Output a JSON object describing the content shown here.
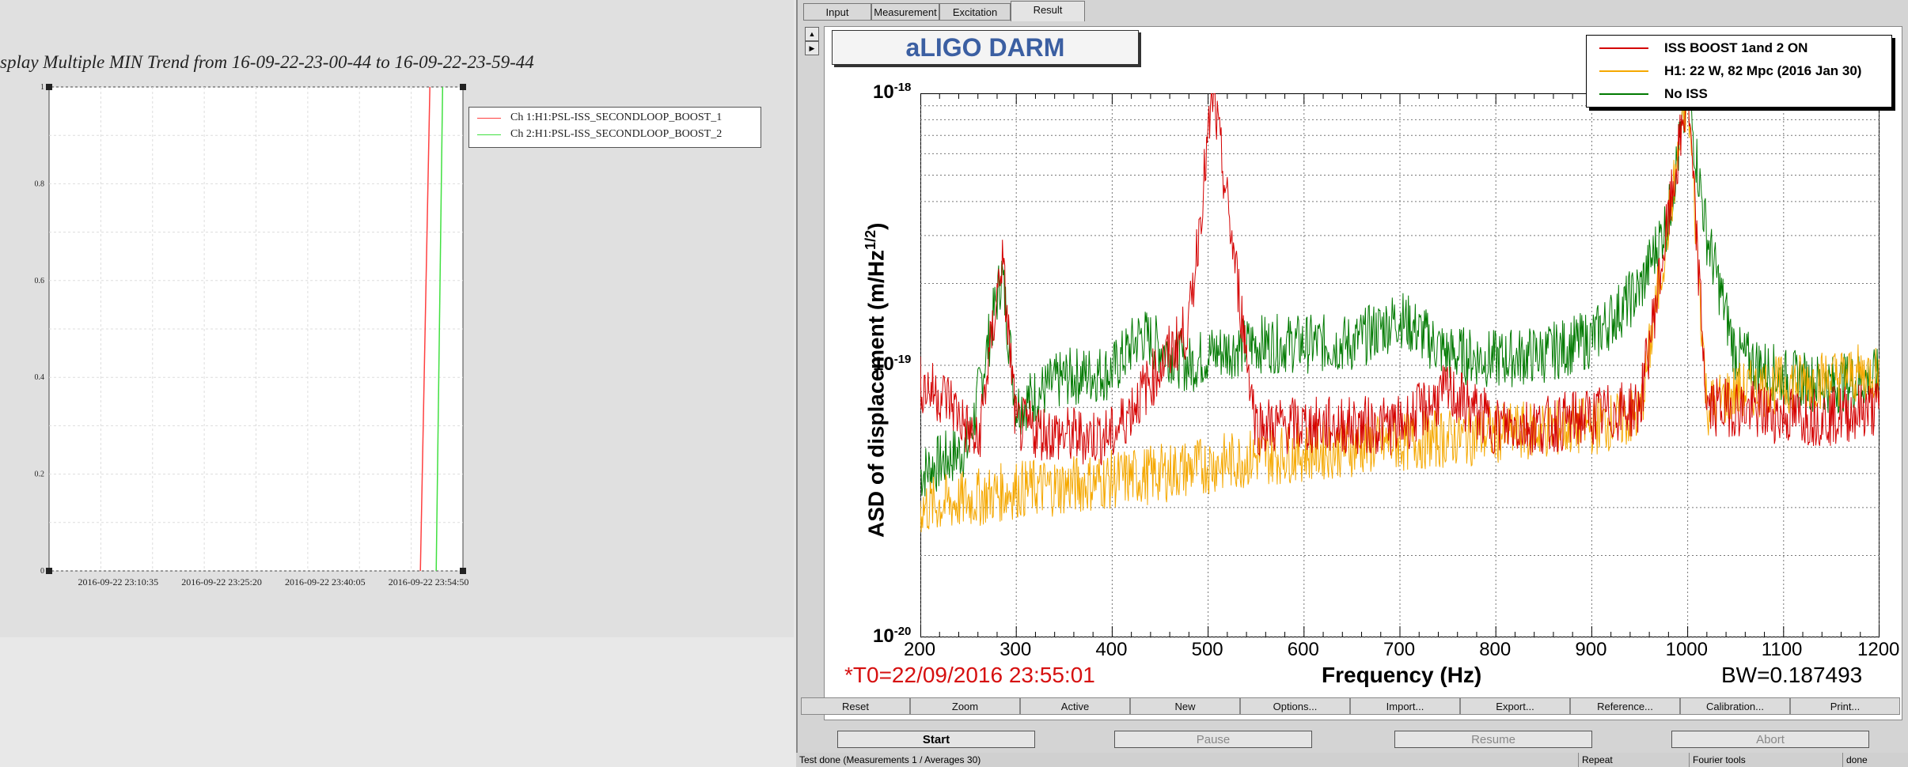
{
  "left": {
    "trend_title": "splay Multiple MIN Trend from 16-09-22-23-00-44 to 16-09-22-23-59-44",
    "legend": [
      {
        "label": "Ch 1:H1:PSL-ISS_SECONDLOOP_BOOST_1",
        "color": "#ff4040"
      },
      {
        "label": "Ch 2:H1:PSL-ISS_SECONDLOOP_BOOST_2",
        "color": "#40e040"
      }
    ],
    "chart_data": {
      "type": "line",
      "y_ticks": [
        "1",
        "0.8",
        "0.6",
        "0.4",
        "0.2",
        "0"
      ],
      "x_ticks": [
        "2016-09-22 23:10:35",
        "2016-09-22 23:25:20",
        "2016-09-22 23:40:05",
        "2016-09-22 23:54:50"
      ],
      "ylim": [
        0,
        1
      ],
      "grid": true,
      "series": [
        {
          "name": "Ch 1:H1:PSL-ISS_SECONDLOOP_BOOST_1",
          "x": [
            "2016-09-22 23:53:40",
            "2016-09-22 23:55:01"
          ],
          "y": [
            0,
            1
          ]
        },
        {
          "name": "Ch 2:H1:PSL-ISS_SECONDLOOP_BOOST_2",
          "x": [
            "2016-09-22 23:55:55",
            "2016-09-22 23:56:50"
          ],
          "y": [
            0,
            1
          ]
        }
      ]
    }
  },
  "right": {
    "tabs": [
      "Input",
      "Measurement",
      "Excitation",
      "Result"
    ],
    "active_tab": "Result",
    "plot_title": "aLIGO DARM",
    "legend": [
      {
        "label": "ISS BOOST 1and 2 ON",
        "color": "#d40000"
      },
      {
        "label": "H1: 22 W, 82 Mpc (2016 Jan 30)",
        "color": "#f5a800"
      },
      {
        "label": "No ISS",
        "color": "#007a00"
      }
    ],
    "ylabel": "ASD of displacement (m/Hz",
    "ylabel_sup": "1/2",
    "ylabel_end": ")",
    "xlabel": "Frequency (Hz)",
    "t0": "*T0=22/09/2016 23:55:01",
    "bw": "BW=0.187493",
    "y_tick_base": "10",
    "y_tick_exps": [
      "-18",
      "-19",
      "-20"
    ],
    "chart_data": {
      "type": "line",
      "x_ticks": [
        "200",
        "300",
        "400",
        "500",
        "600",
        "700",
        "800",
        "900",
        "1000",
        "1100",
        "1200"
      ],
      "xlim": [
        200,
        1200
      ],
      "ylim": [
        1e-20,
        1e-18
      ],
      "yscale": "log",
      "grid": true,
      "legend_position": "top-right",
      "series": [
        {
          "name": "ISS BOOST 1and 2 ON",
          "x": [
            200,
            230,
            260,
            285,
            300,
            350,
            400,
            480,
            505,
            550,
            600,
            650,
            700,
            750,
            800,
            850,
            900,
            950,
            1000,
            1020,
            1050,
            1100,
            1150,
            1200
          ],
          "y": [
            8.5e-20,
            7.5e-20,
            5e-20,
            2.5e-19,
            6e-20,
            5.5e-20,
            5.5e-20,
            1.4e-19,
            1e-18,
            6e-20,
            6e-20,
            6e-20,
            6e-20,
            8e-20,
            6e-20,
            6e-20,
            6.5e-20,
            7e-20,
            1e-18,
            7e-20,
            7e-20,
            6.5e-20,
            6.5e-20,
            7e-20
          ]
        },
        {
          "name": "H1: 22 W, 82 Mpc (2016 Jan 30)",
          "x": [
            200,
            250,
            300,
            350,
            400,
            450,
            500,
            550,
            600,
            650,
            700,
            750,
            800,
            850,
            900,
            950,
            1000,
            1020,
            1050,
            1100,
            1150,
            1200
          ],
          "y": [
            3e-20,
            3.2e-20,
            3.5e-20,
            3.6e-20,
            3.8e-20,
            4e-20,
            4.3e-20,
            4.6e-20,
            4.8e-20,
            5e-20,
            5.2e-20,
            5.4e-20,
            5.6e-20,
            5.8e-20,
            6e-20,
            6.5e-20,
            1e-18,
            7e-20,
            8e-20,
            8.5e-20,
            9e-20,
            9.5e-20
          ]
        },
        {
          "name": "No ISS",
          "x": [
            200,
            250,
            285,
            300,
            350,
            400,
            430,
            480,
            500,
            550,
            600,
            650,
            700,
            750,
            800,
            850,
            900,
            950,
            980,
            1000,
            1020,
            1050,
            1100,
            1150,
            1200
          ],
          "y": [
            4e-20,
            5e-20,
            2.2e-19,
            7e-20,
            9e-20,
            9.5e-20,
            1.3e-19,
            1e-19,
            1.1e-19,
            1.2e-19,
            1.2e-19,
            1.2e-19,
            1.5e-19,
            1.1e-19,
            1.05e-19,
            1.1e-19,
            1.25e-19,
            1.9e-19,
            3.5e-19,
            1e-18,
            3e-19,
            1.1e-19,
            9e-20,
            8.5e-20,
            9e-20
          ]
        }
      ]
    },
    "bottom_buttons": [
      "Reset",
      "Zoom",
      "Active",
      "New",
      "Options...",
      "Import...",
      "Export...",
      "Reference...",
      "Calibration...",
      "Print..."
    ],
    "action_buttons": [
      "Start",
      "Pause",
      "Resume",
      "Abort"
    ],
    "status": {
      "message": "Test done (Measurements 1 / Averages 30)",
      "repeat": "Repeat",
      "tools": "Fourier tools",
      "state": "done"
    },
    "arrow_up": "▲",
    "arrow_right": "▶"
  }
}
